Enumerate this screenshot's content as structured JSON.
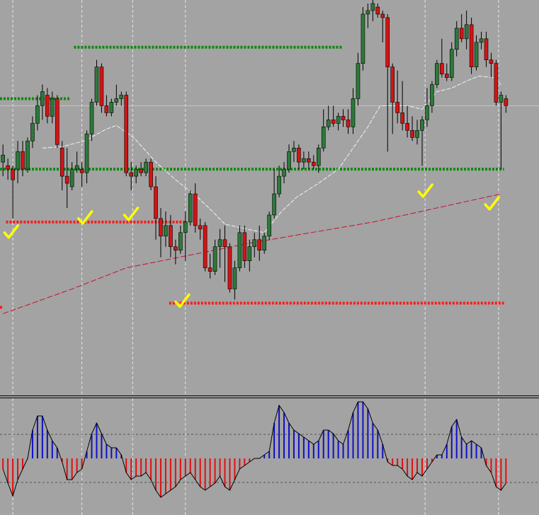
{
  "chart_data": [
    {
      "type": "candlestick",
      "xlim": [
        -0.6,
        108.7
      ],
      "ylim": [
        0,
        560
      ],
      "up_color": "#2c7a3a",
      "down_color": "#d41414",
      "wick_color": "#000000",
      "open": [
        330,
        325,
        320,
        320,
        345,
        320,
        360,
        385,
        410,
        425,
        395,
        420,
        350,
        310,
        295,
        320,
        320,
        315,
        370,
        415,
        465,
        410,
        400,
        415,
        420,
        425,
        315,
        310,
        320,
        315,
        330,
        295,
        250,
        225,
        240,
        210,
        205,
        230,
        245,
        285,
        240,
        240,
        180,
        175,
        210,
        220,
        210,
        150,
        180,
        230,
        190,
        210,
        220,
        205,
        225,
        255,
        285,
        310,
        320,
        345,
        350,
        330,
        335,
        330,
        325,
        350,
        380,
        390,
        385,
        395,
        390,
        380,
        420,
        470,
        540,
        545,
        550,
        540,
        535,
        465,
        415,
        400,
        385,
        375,
        365,
        375,
        390,
        410,
        440,
        470,
        455,
        450,
        490,
        520,
        505,
        525,
        465,
        500,
        505,
        475,
        470,
        415,
        420
      ],
      "high": [
        355,
        335,
        325,
        360,
        360,
        365,
        395,
        425,
        440,
        435,
        430,
        425,
        360,
        350,
        330,
        345,
        330,
        375,
        420,
        475,
        470,
        425,
        420,
        440,
        430,
        430,
        330,
        325,
        330,
        335,
        335,
        310,
        265,
        260,
        255,
        220,
        240,
        260,
        290,
        300,
        250,
        245,
        200,
        220,
        235,
        240,
        215,
        190,
        240,
        240,
        220,
        230,
        240,
        230,
        260,
        320,
        325,
        330,
        355,
        360,
        355,
        345,
        345,
        340,
        355,
        405,
        410,
        410,
        400,
        405,
        405,
        435,
        485,
        550,
        555,
        560,
        555,
        545,
        540,
        470,
        460,
        445,
        410,
        395,
        390,
        395,
        435,
        445,
        475,
        505,
        470,
        500,
        530,
        540,
        545,
        535,
        510,
        515,
        515,
        485,
        475,
        430,
        425
      ],
      "low": [
        310,
        305,
        250,
        300,
        310,
        315,
        350,
        375,
        390,
        385,
        385,
        350,
        290,
        265,
        290,
        315,
        295,
        300,
        360,
        410,
        400,
        395,
        395,
        410,
        410,
        310,
        290,
        300,
        310,
        310,
        290,
        220,
        195,
        210,
        195,
        185,
        200,
        190,
        240,
        230,
        220,
        175,
        165,
        170,
        180,
        160,
        145,
        135,
        175,
        180,
        175,
        195,
        190,
        200,
        220,
        250,
        280,
        300,
        315,
        330,
        320,
        320,
        320,
        320,
        315,
        345,
        375,
        380,
        375,
        380,
        370,
        370,
        410,
        460,
        520,
        530,
        535,
        500,
        345,
        370,
        385,
        375,
        365,
        360,
        355,
        325,
        380,
        400,
        435,
        450,
        445,
        445,
        480,
        500,
        490,
        455,
        460,
        490,
        465,
        450,
        410,
        320,
        400
      ],
      "close": [
        340,
        320,
        305,
        345,
        320,
        360,
        385,
        410,
        430,
        395,
        420,
        355,
        310,
        300,
        320,
        325,
        315,
        370,
        415,
        465,
        410,
        400,
        415,
        420,
        425,
        315,
        310,
        320,
        315,
        330,
        295,
        250,
        225,
        240,
        210,
        205,
        230,
        245,
        285,
        240,
        235,
        180,
        175,
        210,
        220,
        210,
        150,
        180,
        230,
        190,
        210,
        220,
        205,
        225,
        255,
        285,
        310,
        320,
        345,
        350,
        330,
        335,
        330,
        325,
        350,
        380,
        390,
        385,
        395,
        390,
        380,
        420,
        470,
        540,
        545,
        555,
        540,
        535,
        465,
        415,
        400,
        385,
        375,
        365,
        375,
        390,
        410,
        440,
        470,
        455,
        450,
        490,
        520,
        505,
        525,
        465,
        500,
        505,
        475,
        470,
        415,
        425,
        410
      ],
      "lines": [
        {
          "color": "#f2f2f2",
          "x": [
            8,
            12,
            16.5,
            21,
            23,
            26.5,
            31,
            35,
            39.5,
            42.5,
            45,
            49.5,
            53,
            56.5,
            59.5,
            64,
            68,
            71,
            74,
            76.5,
            79.5,
            82,
            85,
            88,
            91,
            94,
            96.5,
            99.5,
            101
          ],
          "values": [
            350,
            352,
            360,
            377,
            382,
            365,
            330,
            305,
            280,
            260,
            242,
            235,
            230,
            260,
            280,
            300,
            320,
            350,
            380,
            410,
            410,
            410,
            405,
            430,
            435,
            445,
            452,
            450,
            440
          ]
        },
        {
          "color": "#c8102e",
          "x": [
            0,
            14,
            25,
            50,
            75,
            88,
            101
          ],
          "values": [
            115,
            150,
            180,
            215,
            245,
            265,
            285
          ]
        }
      ],
      "levels": [
        {
          "value": 493,
          "from": 14.4,
          "to": 68.7,
          "color": "#0a8a0a"
        },
        {
          "value": 420,
          "from": -0.6,
          "to": 13.7,
          "color": "#0a8a0a"
        },
        {
          "value": 320,
          "from": -0.6,
          "to": 101.6,
          "color": "#0a8a0a"
        },
        {
          "value": 245,
          "from": 0.6,
          "to": 37.3,
          "color": "#ff1a1a"
        },
        {
          "value": 130,
          "from": 33.7,
          "to": 101.6,
          "color": "#ff1a1a"
        },
        {
          "value": 124,
          "from": -0.6,
          "to": 0.1,
          "color": "#ff1a1a"
        }
      ],
      "price_line": 410,
      "markers": {
        "color": "#ffff00",
        "x": [
          1.6,
          16.6,
          25.9,
          36.3,
          85.6,
          99.1
        ],
        "values": [
          230,
          250,
          255,
          132,
          288,
          270
        ]
      },
      "xgrid": [
        2,
        16,
        26.3,
        37,
        85.6,
        100.5
      ]
    },
    {
      "type": "histogram",
      "xlim": [
        -0.6,
        108.7
      ],
      "ylim": [
        -80,
        85
      ],
      "pos_color": "#1010c8",
      "neg_color": "#e01010",
      "line_color": "#000000",
      "values": [
        -15,
        -35,
        -53,
        -30,
        -15,
        0,
        40,
        60,
        60,
        40,
        25,
        15,
        -5,
        -30,
        -30,
        -20,
        -15,
        10,
        35,
        50,
        35,
        20,
        15,
        15,
        5,
        -20,
        -30,
        -25,
        -25,
        -20,
        -30,
        -45,
        -55,
        -50,
        -45,
        -40,
        -30,
        -25,
        -20,
        -30,
        -40,
        -45,
        -40,
        -35,
        -25,
        -40,
        -45,
        -30,
        -15,
        -10,
        -5,
        0,
        0,
        5,
        10,
        50,
        75,
        65,
        50,
        40,
        35,
        30,
        25,
        20,
        25,
        40,
        40,
        35,
        25,
        20,
        40,
        65,
        80,
        80,
        70,
        50,
        40,
        20,
        -5,
        -10,
        -10,
        -15,
        -25,
        -30,
        -20,
        -25,
        -15,
        -5,
        5,
        5,
        20,
        45,
        55,
        30,
        20,
        25,
        20,
        15,
        -10,
        -20,
        -40,
        -45,
        -35
      ],
      "levels": [
        34,
        -34
      ],
      "xgrid": [
        2,
        16,
        26.3,
        37,
        85.6,
        100.5
      ]
    }
  ]
}
